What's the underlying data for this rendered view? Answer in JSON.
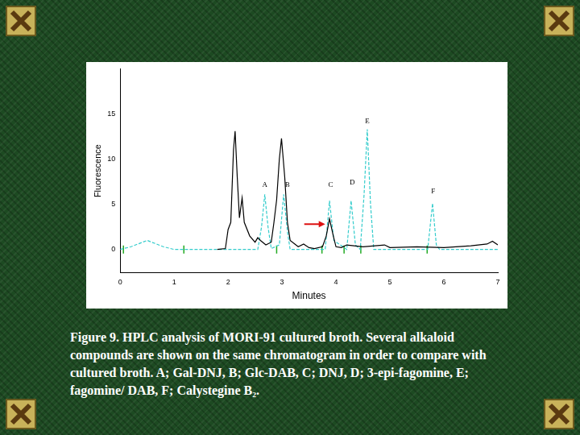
{
  "chart_data": {
    "type": "line",
    "x_label": "Minutes",
    "y_label": "Fluorescence",
    "xlim": [
      0,
      7
    ],
    "xticks": [
      0,
      1,
      2,
      3,
      4,
      5,
      6,
      7
    ],
    "ylim": [
      -2.6,
      20
    ],
    "yticks": [
      0,
      5,
      10,
      15
    ],
    "grid": false,
    "series": [
      {
        "color": "#000000",
        "line_style": "solid",
        "x": [
          1.8,
          1.95,
          2.0,
          2.05,
          2.1,
          2.13,
          2.17,
          2.21,
          2.26,
          2.3,
          2.4,
          2.5,
          2.55,
          2.6,
          2.7,
          2.8,
          2.85,
          2.9,
          2.95,
          2.99,
          3.05,
          3.1,
          3.15,
          3.3,
          3.4,
          3.5,
          3.6,
          3.75,
          3.82,
          3.88,
          3.95,
          4.0,
          4.1,
          4.2,
          4.5,
          4.9,
          5.0,
          5.5,
          6.0,
          6.5,
          6.8,
          6.9,
          7.0
        ],
        "values": [
          0,
          0.1,
          2.2,
          3.0,
          11.0,
          13.1,
          8.0,
          3.5,
          5.7,
          3.0,
          1.5,
          0.8,
          1.3,
          1.0,
          0.5,
          0.8,
          3.0,
          5.5,
          10.0,
          12.3,
          8.0,
          3.0,
          1.0,
          0.3,
          0.6,
          0.2,
          0.1,
          0.3,
          1.5,
          3.4,
          1.5,
          0.3,
          0.2,
          0.5,
          0.3,
          0.5,
          0.2,
          0.3,
          0.2,
          0.4,
          0.6,
          0.9,
          0.5
        ]
      },
      {
        "color": "#33cccc",
        "line_style": "dashed",
        "x": [
          0,
          0.2,
          0.5,
          0.8,
          1.0,
          1.9,
          2.55,
          2.62,
          2.68,
          2.74,
          2.8,
          2.95,
          3.03,
          3.1,
          3.15,
          3.8,
          3.88,
          3.96,
          4.2,
          4.28,
          4.36,
          4.45,
          4.52,
          4.58,
          4.64,
          4.7,
          5.7,
          5.79,
          5.86,
          5.92,
          7.0
        ],
        "values": [
          0,
          0.3,
          1.0,
          0.3,
          0,
          0,
          0,
          2.5,
          6.1,
          2.5,
          0.1,
          0.5,
          6.1,
          2.0,
          0,
          0,
          5.4,
          1.0,
          0,
          5.4,
          0.5,
          0,
          6.0,
          13.3,
          5.0,
          0,
          0,
          5.1,
          0.5,
          0,
          0
        ]
      },
      {
        "color": "#22aa22",
        "type": "scatter",
        "marker": "tick",
        "x": [
          0.06,
          1.18,
          2.9,
          3.74,
          4.15,
          4.46,
          5.69
        ],
        "values": [
          0,
          0,
          0,
          0,
          0,
          0,
          0
        ]
      }
    ],
    "annotations": [
      {
        "text": "A",
        "x": 2.68,
        "y": 6.7
      },
      {
        "text": "B",
        "x": 3.1,
        "y": 6.7
      },
      {
        "text": "C",
        "x": 3.9,
        "y": 6.7
      },
      {
        "text": "D",
        "x": 4.3,
        "y": 7.0
      },
      {
        "text": "E",
        "x": 4.58,
        "y": 13.8
      },
      {
        "text": "F",
        "x": 5.8,
        "y": 6.0
      },
      {
        "type": "arrow",
        "x": 3.8,
        "y": 2.8,
        "color": "#dd1111"
      }
    ],
    "caption": [
      "Figure 9. HPLC analysis of  MORI-91 cultured broth. Several  alkaloid",
      "compounds are shown on the same chromatogram in order to compare with",
      "cultured broth. A; Gal-DNJ, B; Glc-DAB, C; DNJ, D; 3-epi-fagomine, E;",
      "fagomine/ DAB, F; Calystegine B₂."
    ]
  }
}
